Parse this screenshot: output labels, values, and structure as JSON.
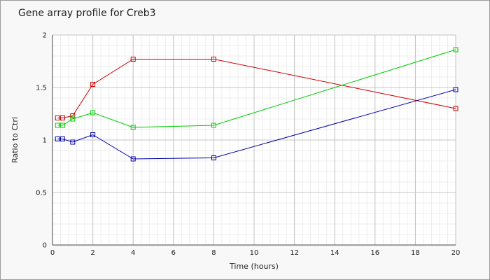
{
  "chart_data": {
    "type": "line",
    "title": "Gene array profile for Creb3",
    "xlabel": "Time (hours)",
    "ylabel": "Ratio to Ctrl",
    "xlim": [
      0,
      20
    ],
    "ylim": [
      0,
      2
    ],
    "xticks": [
      0,
      2,
      4,
      6,
      8,
      10,
      12,
      14,
      16,
      18,
      20
    ],
    "yticks": [
      0,
      0.5,
      1,
      1.5,
      2
    ],
    "ytick_labels": [
      "0",
      "0.5",
      "1",
      "1.5",
      "2"
    ],
    "grid": true,
    "marker": "square",
    "colors": [
      "#cc0000",
      "#00cc00",
      "#0000aa"
    ],
    "series": [
      {
        "x": [
          0.25,
          0.5,
          1,
          2,
          4,
          8,
          20
        ],
        "values": [
          1.21,
          1.21,
          1.23,
          1.53,
          1.77,
          1.77,
          1.3
        ]
      },
      {
        "x": [
          0.25,
          0.5,
          1,
          2,
          4,
          8,
          20
        ],
        "values": [
          1.14,
          1.14,
          1.2,
          1.26,
          1.12,
          1.14,
          1.86
        ]
      },
      {
        "x": [
          0.25,
          0.5,
          1,
          2,
          4,
          8,
          20
        ],
        "values": [
          1.01,
          1.01,
          0.98,
          1.05,
          0.82,
          0.83,
          1.48
        ]
      }
    ]
  }
}
